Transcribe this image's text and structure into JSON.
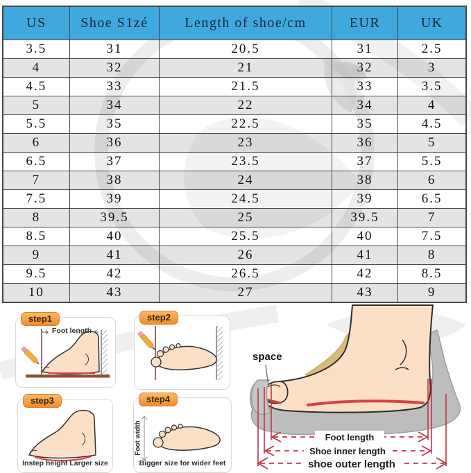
{
  "table": {
    "headers": [
      "US",
      "Shoe S1zé",
      "Length of shoe/cm",
      "EUR",
      "UK"
    ],
    "rows": [
      [
        "3.5",
        "31",
        "20.5",
        "31",
        "2.5"
      ],
      [
        "4",
        "32",
        "21",
        "32",
        "3"
      ],
      [
        "4.5",
        "33",
        "21.5",
        "33",
        "3.5"
      ],
      [
        "5",
        "34",
        "22",
        "34",
        "4"
      ],
      [
        "5.5",
        "35",
        "22.5",
        "35",
        "4.5"
      ],
      [
        "6",
        "36",
        "23",
        "36",
        "5"
      ],
      [
        "6.5",
        "37",
        "23.5",
        "37",
        "5.5"
      ],
      [
        "7",
        "38",
        "24",
        "38",
        "6"
      ],
      [
        "7.5",
        "39",
        "24.5",
        "39",
        "6.5"
      ],
      [
        "8",
        "39.5",
        "25",
        "39.5",
        "7"
      ],
      [
        "8.5",
        "40",
        "25.5",
        "40",
        "7.5"
      ],
      [
        "9",
        "41",
        "26",
        "41",
        "8"
      ],
      [
        "9.5",
        "42",
        "26.5",
        "42",
        "8.5"
      ],
      [
        "10",
        "43",
        "27",
        "43",
        "9"
      ]
    ],
    "header_bg": "#3fa8de",
    "alt_row_bg": "#e2e2e2"
  },
  "steps": [
    {
      "badge": "step1",
      "label": "Foot length"
    },
    {
      "badge": "step2"
    },
    {
      "badge": "step3",
      "caption": "Instep height Larger size"
    },
    {
      "badge": "step4",
      "side_label": "Foot width",
      "caption": "Bigger size for wider feet"
    }
  ],
  "diagram": {
    "space_label": "space",
    "measures": [
      "Foot length",
      "Shoe inner length",
      "shoe outer length"
    ],
    "line_color": "#c03546"
  }
}
